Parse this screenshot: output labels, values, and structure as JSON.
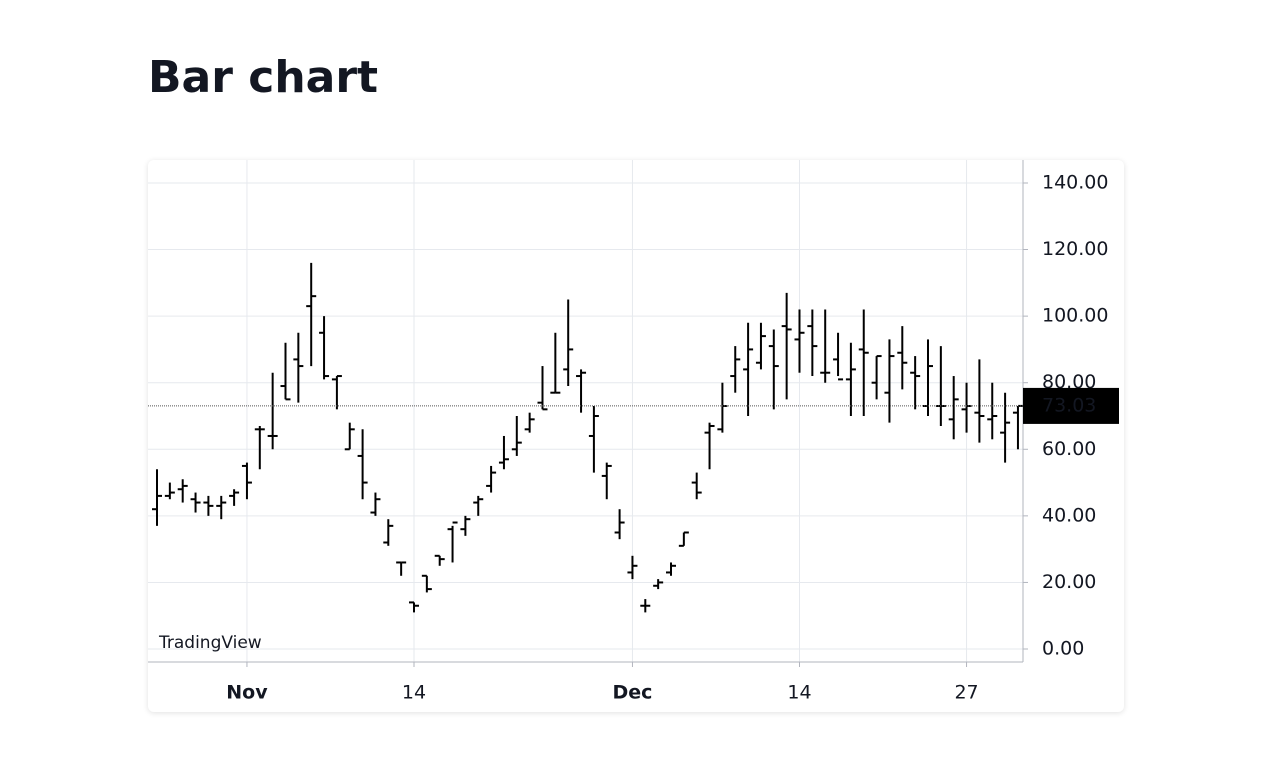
{
  "chart_data": {
    "type": "ohlc",
    "title": "Bar chart",
    "watermark": "TradingView",
    "color": "#000000",
    "x": [
      "10-25",
      "10-26",
      "10-27",
      "10-28",
      "10-29",
      "10-30",
      "10-31",
      "11-01",
      "11-02",
      "11-03",
      "11-04",
      "11-05",
      "11-06",
      "11-07",
      "11-08",
      "11-09",
      "11-10",
      "11-11",
      "11-12",
      "11-13",
      "11-14",
      "11-15",
      "11-16",
      "11-17",
      "11-18",
      "11-19",
      "11-20",
      "11-21",
      "11-22",
      "11-23",
      "11-24",
      "11-25",
      "11-26",
      "11-27",
      "11-28",
      "11-29",
      "11-30",
      "12-01",
      "12-02",
      "12-03",
      "12-04",
      "12-05",
      "12-06",
      "12-07",
      "12-08",
      "12-09",
      "12-10",
      "12-11",
      "12-12",
      "12-13",
      "12-14",
      "12-15",
      "12-16",
      "12-17",
      "12-18",
      "12-19",
      "12-20",
      "12-21",
      "12-22",
      "12-23",
      "12-24",
      "12-25",
      "12-26",
      "12-27",
      "12-28",
      "12-29",
      "12-30",
      "12-31"
    ],
    "open": [
      42,
      46,
      48,
      45,
      44,
      43,
      46,
      55,
      66,
      64,
      79,
      87,
      103,
      95,
      81,
      60,
      58,
      41,
      32,
      26,
      14,
      22,
      28,
      36,
      36,
      44,
      49,
      56,
      60,
      66,
      74,
      77,
      84,
      82,
      64,
      52,
      35,
      23,
      13,
      19,
      23,
      31,
      50,
      65,
      66,
      82,
      84,
      86,
      91,
      97,
      93,
      97,
      83,
      87,
      81,
      90,
      80,
      77,
      89,
      83,
      73,
      73,
      69,
      72,
      71,
      69,
      65,
      71
    ],
    "high": [
      54,
      50,
      51,
      47,
      46,
      46,
      48,
      56,
      67,
      83,
      92,
      95,
      116,
      100,
      82,
      68,
      66,
      47,
      39,
      26,
      14,
      22,
      28,
      37,
      40,
      46,
      55,
      64,
      70,
      71,
      85,
      95,
      105,
      84,
      73,
      56,
      42,
      28,
      15,
      21,
      26,
      35,
      53,
      68,
      80,
      91,
      98,
      98,
      96,
      107,
      102,
      102,
      102,
      95,
      92,
      102,
      88,
      93,
      97,
      88,
      93,
      91,
      82,
      80,
      87,
      80,
      77,
      73
    ],
    "low": [
      37,
      45,
      44,
      41,
      40,
      39,
      43,
      45,
      54,
      60,
      75,
      74,
      85,
      81,
      72,
      60,
      45,
      40,
      31,
      22,
      11,
      17,
      25,
      26,
      34,
      40,
      47,
      54,
      58,
      65,
      72,
      77,
      79,
      71,
      53,
      45,
      33,
      21,
      11,
      18,
      22,
      31,
      45,
      54,
      65,
      77,
      70,
      84,
      72,
      75,
      83,
      82,
      80,
      82,
      70,
      70,
      75,
      68,
      78,
      72,
      70,
      67,
      63,
      65,
      62,
      63,
      56,
      60
    ],
    "close": [
      46,
      47,
      49,
      44,
      43,
      44,
      47,
      50,
      66,
      64,
      75,
      85,
      106,
      82,
      82,
      66,
      50,
      45,
      37,
      26,
      13,
      18,
      27,
      38,
      39,
      45,
      53,
      57,
      62,
      69,
      72,
      77,
      90,
      83,
      70,
      55,
      38,
      25,
      13,
      20,
      25,
      35,
      47,
      67,
      73,
      87,
      90,
      94,
      85,
      96,
      95,
      91,
      83,
      81,
      84,
      89,
      88,
      88,
      86,
      82,
      85,
      73,
      75,
      73,
      70,
      70,
      68,
      73.03
    ],
    "xticks": [
      {
        "value": "11-01",
        "label": "Nov"
      },
      {
        "value": "11-14",
        "label": "14"
      },
      {
        "value": "12-01",
        "label": "Dec"
      },
      {
        "value": "12-14",
        "label": "14"
      },
      {
        "value": "12-27",
        "label": "27"
      }
    ],
    "ylim": [
      -3.9,
      145.4
    ],
    "yticks": [
      {
        "value": 0,
        "label": "0.00"
      },
      {
        "value": 20,
        "label": "20.00"
      },
      {
        "value": 40,
        "label": "40.00"
      },
      {
        "value": 60,
        "label": "60.00"
      },
      {
        "value": 80,
        "label": "80.00"
      },
      {
        "value": 100,
        "label": "100.00"
      },
      {
        "value": 120,
        "label": "120.00"
      },
      {
        "value": 140,
        "label": "140.00"
      }
    ],
    "grid": true
  }
}
